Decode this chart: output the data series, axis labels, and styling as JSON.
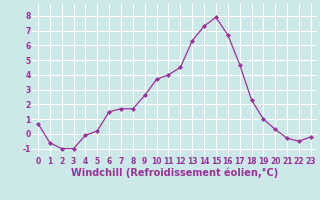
{
  "x": [
    0,
    1,
    2,
    3,
    4,
    5,
    6,
    7,
    8,
    9,
    10,
    11,
    12,
    13,
    14,
    15,
    16,
    17,
    18,
    19,
    20,
    21,
    22,
    23
  ],
  "y": [
    0.7,
    -0.6,
    -1.0,
    -1.0,
    -0.1,
    0.2,
    1.5,
    1.7,
    1.7,
    2.6,
    3.7,
    4.0,
    4.5,
    6.3,
    7.3,
    7.9,
    6.7,
    4.7,
    2.3,
    1.0,
    0.3,
    -0.3,
    -0.5,
    -0.2
  ],
  "line_color": "#993399",
  "marker": "D",
  "marker_size": 2,
  "bg_color": "#cce8e8",
  "grid_color": "#ffffff",
  "xlabel": "Windchill (Refroidissement éolien,°C)",
  "xlim": [
    -0.5,
    23.5
  ],
  "ylim": [
    -1.5,
    8.8
  ],
  "yticks": [
    -1,
    0,
    1,
    2,
    3,
    4,
    5,
    6,
    7,
    8
  ],
  "xticks": [
    0,
    1,
    2,
    3,
    4,
    5,
    6,
    7,
    8,
    9,
    10,
    11,
    12,
    13,
    14,
    15,
    16,
    17,
    18,
    19,
    20,
    21,
    22,
    23
  ],
  "tick_fontsize": 5.5,
  "label_fontsize": 7.0
}
